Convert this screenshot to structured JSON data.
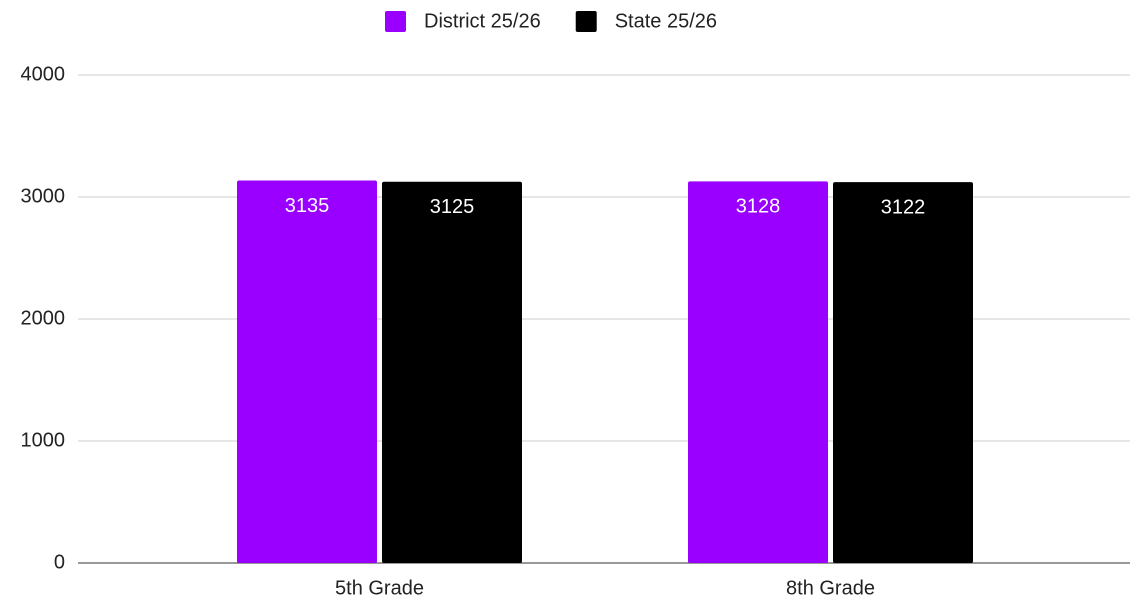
{
  "chart_data": {
    "type": "bar",
    "categories": [
      "5th Grade",
      "8th Grade"
    ],
    "series": [
      {
        "name": "District 25/26",
        "color": "#9900ff",
        "values": [
          3135,
          3128
        ]
      },
      {
        "name": "State 25/26",
        "color": "#000000",
        "values": [
          3125,
          3122
        ]
      }
    ],
    "ylim": [
      0,
      4000
    ],
    "yticks": [
      0,
      1000,
      2000,
      3000,
      4000
    ],
    "grid": true,
    "legend": "top"
  }
}
